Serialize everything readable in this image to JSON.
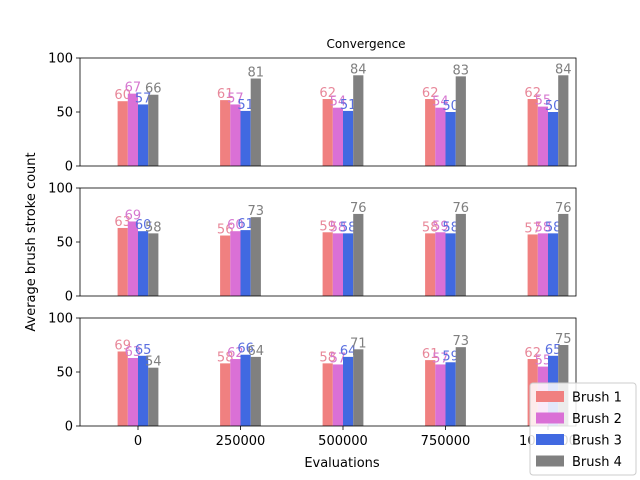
{
  "chart_data": {
    "type": "bar",
    "title": "Convergence",
    "xlabel": "Evaluations",
    "ylabel": "Average brush stroke count",
    "categories": [
      "0",
      "250000",
      "500000",
      "750000",
      "1000000"
    ],
    "ylim": [
      0,
      100
    ],
    "yticks": [
      0,
      50,
      100
    ],
    "legend_position": "bottom-right",
    "series_colors": [
      "#f08080",
      "#da70d6",
      "#4169e1",
      "#808080"
    ],
    "label_colors": [
      "#e8889a",
      "#d678d0",
      "#5a6fe0",
      "#808080"
    ],
    "legend": [
      "Brush 1",
      "Brush 2",
      "Brush 3",
      "Brush 4"
    ],
    "panels": [
      {
        "series": [
          {
            "name": "Brush 1",
            "values": [
              60,
              61,
              62,
              62,
              62
            ]
          },
          {
            "name": "Brush 2",
            "values": [
              67,
              57,
              54,
              54,
              55
            ]
          },
          {
            "name": "Brush 3",
            "values": [
              57,
              51,
              51,
              50,
              50
            ]
          },
          {
            "name": "Brush 4",
            "values": [
              66,
              81,
              84,
              83,
              84
            ]
          }
        ]
      },
      {
        "series": [
          {
            "name": "Brush 1",
            "values": [
              63,
              56,
              59,
              58,
              57
            ]
          },
          {
            "name": "Brush 2",
            "values": [
              69,
              60,
              58,
              59,
              58
            ]
          },
          {
            "name": "Brush 3",
            "values": [
              60,
              61,
              58,
              58,
              58
            ]
          },
          {
            "name": "Brush 4",
            "values": [
              58,
              73,
              76,
              76,
              76
            ]
          }
        ]
      },
      {
        "series": [
          {
            "name": "Brush 1",
            "values": [
              69,
              58,
              58,
              61,
              62
            ]
          },
          {
            "name": "Brush 2",
            "values": [
              63,
              62,
              57,
              57,
              55
            ]
          },
          {
            "name": "Brush 3",
            "values": [
              65,
              66,
              64,
              59,
              65
            ]
          },
          {
            "name": "Brush 4",
            "values": [
              54,
              64,
              71,
              73,
              75
            ]
          }
        ]
      }
    ]
  }
}
